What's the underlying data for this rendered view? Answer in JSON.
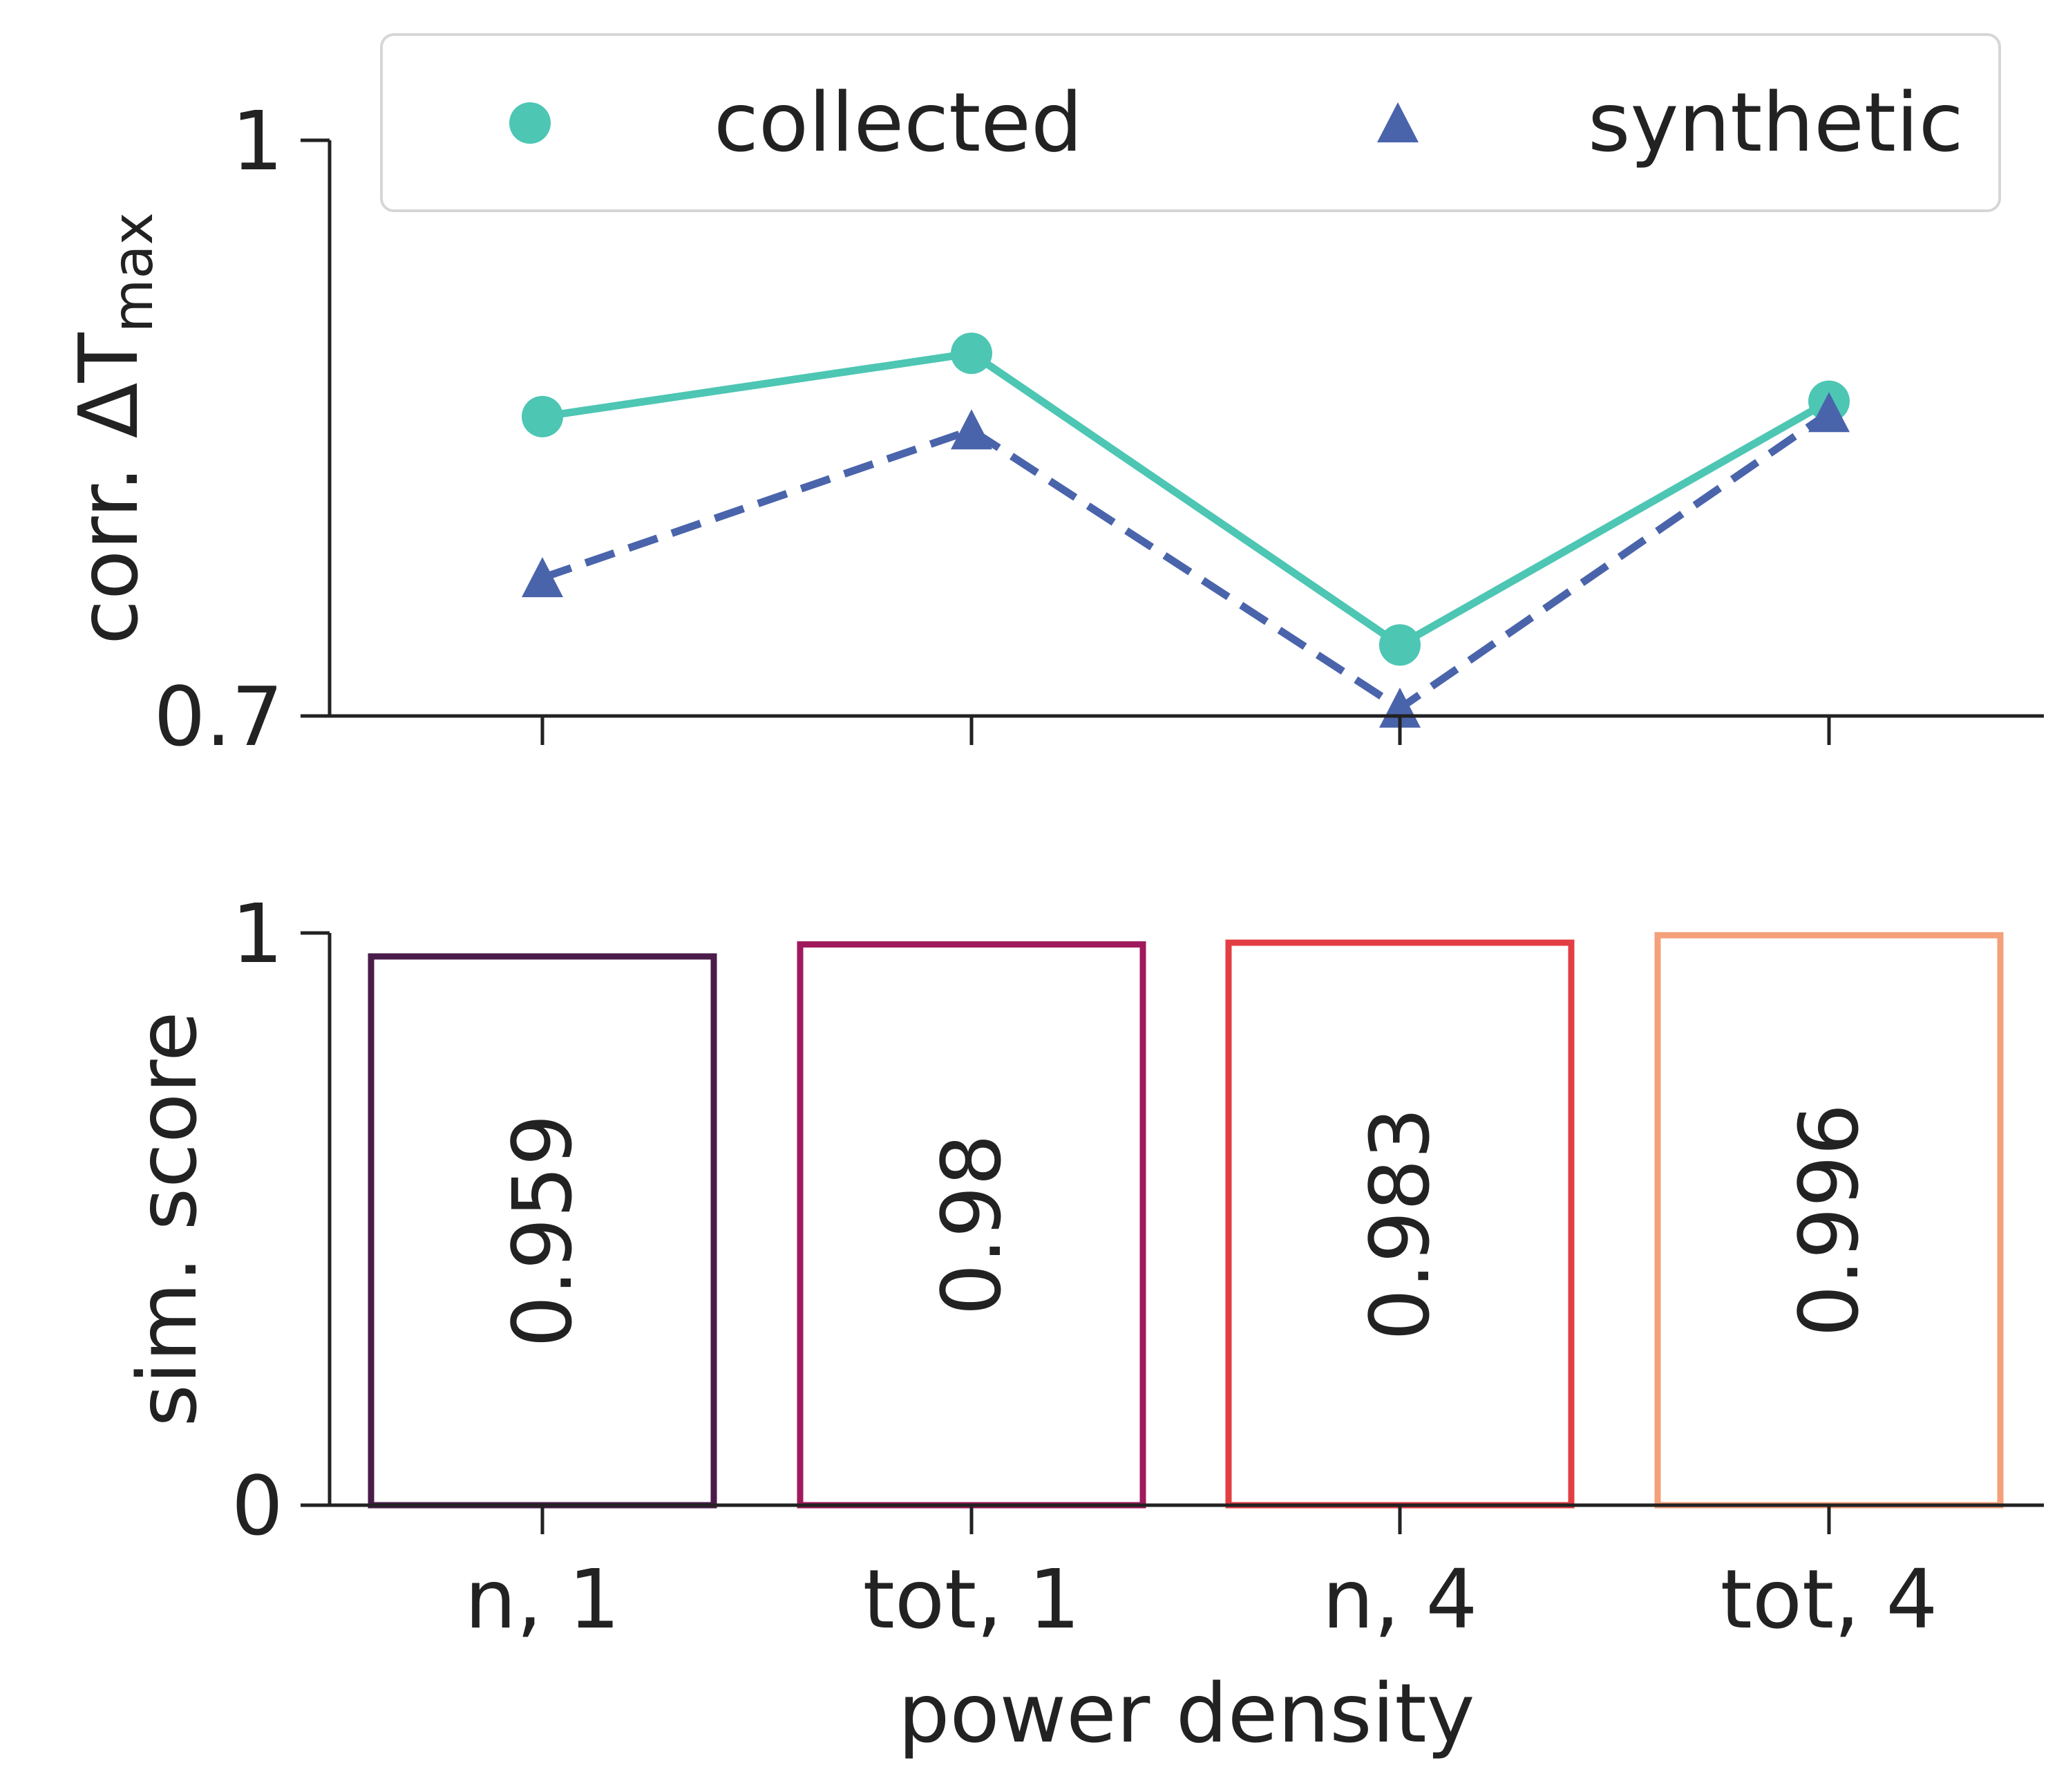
{
  "colors": {
    "collected": "#4dc6b4",
    "synthetic": "#4a64ab",
    "bars": [
      "#4a1c4a",
      "#a0195c",
      "#e33e43",
      "#f4a07a"
    ],
    "text": "#222222"
  },
  "chart_data": [
    {
      "type": "line",
      "categories": [
        "n, 1",
        "tot, 1",
        "n, 4",
        "tot, 4"
      ],
      "ylabel": "corr.",
      "ylabel_symbol": "ΔT",
      "ylabel_sub": "max",
      "ylim": [
        0.7,
        1.0
      ],
      "yticks": [
        "0.7",
        "1"
      ],
      "yticks_values": [
        0.7,
        1.0
      ],
      "legend_position": "top",
      "series": [
        {
          "name": "collected",
          "marker": "circle",
          "line": "solid",
          "values": [
            0.856,
            0.889,
            0.737,
            0.864
          ]
        },
        {
          "name": "synthetic",
          "marker": "triangle",
          "line": "dashed",
          "values": [
            0.772,
            0.849,
            0.704,
            0.858
          ]
        }
      ]
    },
    {
      "type": "bar",
      "categories": [
        "n, 1",
        "tot, 1",
        "n, 4",
        "tot, 4"
      ],
      "ylabel": "sim. score",
      "xlabel": "power density",
      "ylim": [
        0,
        1
      ],
      "yticks": [
        "0",
        "1"
      ],
      "yticks_values": [
        0,
        1
      ],
      "values": [
        0.959,
        0.98,
        0.983,
        0.996
      ],
      "value_labels": [
        "0.959",
        "0.98",
        "0.983",
        "0.996"
      ]
    }
  ]
}
